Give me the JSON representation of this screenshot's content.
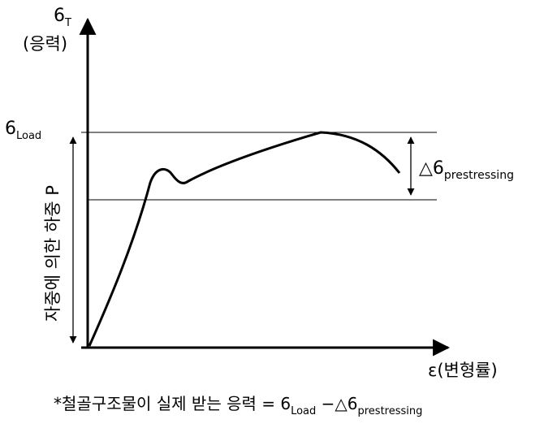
{
  "y_axis": {
    "symbol": "6",
    "subscript": "T",
    "label": "(응력)"
  },
  "x_axis": {
    "label": "ε(변형률)"
  },
  "load_level": {
    "symbol": "6",
    "subscript": "Load"
  },
  "delta_label": {
    "prefix": "△6",
    "subscript": "prestressing"
  },
  "vertical_arrow_label": "자중에 의한 하중 P",
  "footnote": {
    "text": "*철골구조물이 실제 받는 응력 = 6",
    "sub1": "Load",
    "mid": " −△6",
    "sub2": "prestressing"
  }
}
